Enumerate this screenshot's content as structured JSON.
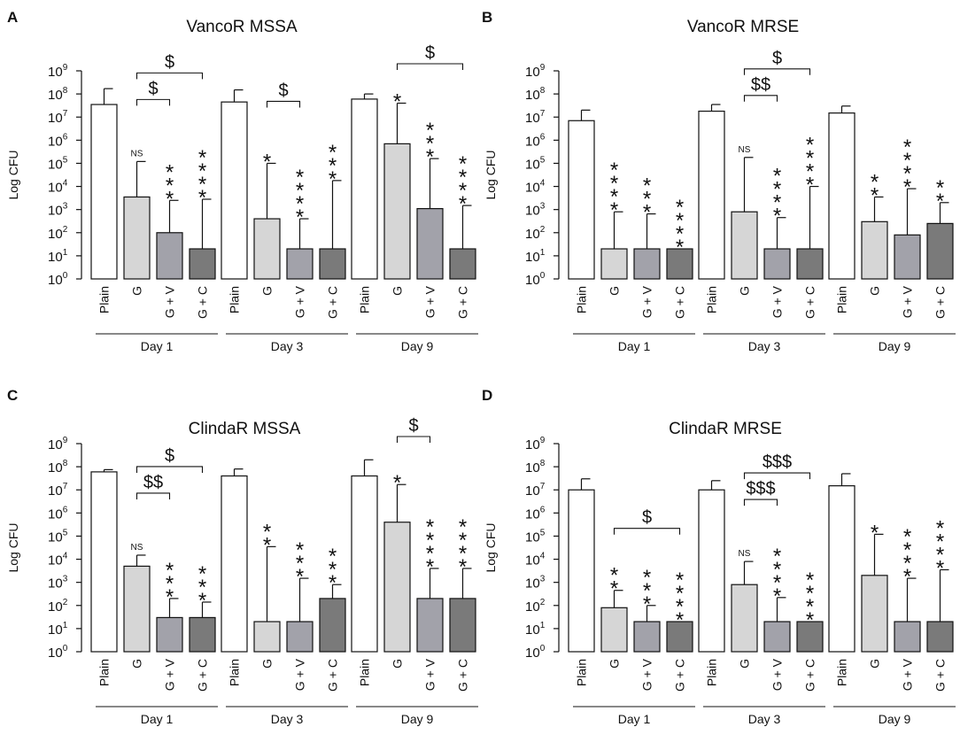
{
  "figure": {
    "colors": {
      "Plain": "#ffffff",
      "G": "#d6d6d6",
      "G + V": "#a2a2aa",
      "G + C": "#7a7a7a",
      "stroke": "#111111"
    },
    "y_axis_label": "Log CFU",
    "y_ticks": [
      {
        "base": "10",
        "exp": "0"
      },
      {
        "base": "10",
        "exp": "1"
      },
      {
        "base": "10",
        "exp": "2"
      },
      {
        "base": "10",
        "exp": "3"
      },
      {
        "base": "10",
        "exp": "4"
      },
      {
        "base": "10",
        "exp": "5"
      },
      {
        "base": "10",
        "exp": "6"
      },
      {
        "base": "10",
        "exp": "7"
      },
      {
        "base": "10",
        "exp": "8"
      },
      {
        "base": "10",
        "exp": "9"
      }
    ],
    "categories": [
      "Plain",
      "G",
      "G + V",
      "G + C"
    ],
    "days": [
      "Day 1",
      "Day 3",
      "Day 9"
    ]
  },
  "chart_data": [
    {
      "type": "bar",
      "letter": "A",
      "title": "VancoR MSSA",
      "ylabel": "Log CFU",
      "yscale": "log",
      "ylim_log10": [
        0,
        9
      ],
      "categories": [
        "Plain",
        "G",
        "G + V",
        "G + C"
      ],
      "groups": [
        {
          "name": "Day 1",
          "values": [
            35000000,
            3500,
            100,
            20
          ],
          "error_upper": [
            170000000,
            120000,
            2500,
            2800
          ],
          "sig": [
            "",
            "NS",
            "***",
            "****"
          ]
        },
        {
          "name": "Day 3",
          "values": [
            45000000,
            400,
            20,
            20
          ],
          "error_upper": [
            150000000,
            100000,
            400,
            18000
          ],
          "sig": [
            "",
            "*",
            "****",
            "***"
          ]
        },
        {
          "name": "Day 9",
          "values": [
            60000000,
            700000,
            1100,
            20
          ],
          "error_upper": [
            100000000,
            40000000,
            160000,
            1500
          ],
          "sig": [
            "",
            "*",
            "***",
            "****"
          ]
        }
      ],
      "brackets": [
        {
          "group": 0,
          "from": "G",
          "to": "G + V",
          "label": "$"
        },
        {
          "group": 0,
          "from": "G",
          "to": "G + C",
          "label": "$"
        },
        {
          "group": 1,
          "from": "G",
          "to": "G + V",
          "label": "$"
        },
        {
          "group": 2,
          "from": "G",
          "to": "G + C",
          "label": "$"
        }
      ]
    },
    {
      "type": "bar",
      "letter": "B",
      "title": "VancoR MRSE",
      "ylabel": "Log CFU",
      "yscale": "log",
      "ylim_log10": [
        0,
        9
      ],
      "categories": [
        "Plain",
        "G",
        "G + V",
        "G + C"
      ],
      "groups": [
        {
          "name": "Day 1",
          "values": [
            7000000,
            20,
            20,
            20
          ],
          "error_upper": [
            20000000,
            800,
            650,
            20
          ],
          "sig": [
            "",
            "****",
            "***",
            "****"
          ]
        },
        {
          "name": "Day 3",
          "values": [
            18000000,
            800,
            20,
            20
          ],
          "error_upper": [
            35000000,
            180000,
            450,
            10000
          ],
          "sig": [
            "",
            "NS",
            "****",
            "****"
          ]
        },
        {
          "name": "Day 9",
          "values": [
            15000000,
            300,
            80,
            250
          ],
          "error_upper": [
            30000000,
            3500,
            8000,
            2000
          ],
          "sig": [
            "",
            "**",
            "****",
            "**"
          ]
        }
      ],
      "brackets": [
        {
          "group": 1,
          "from": "G",
          "to": "G + V",
          "label": "$$"
        },
        {
          "group": 1,
          "from": "G",
          "to": "G + C",
          "label": "$"
        }
      ]
    },
    {
      "type": "bar",
      "letter": "C",
      "title": "ClindaR MSSA",
      "ylabel": "Log CFU",
      "yscale": "log",
      "ylim_log10": [
        0,
        9
      ],
      "categories": [
        "Plain",
        "G",
        "G + V",
        "G + C"
      ],
      "groups": [
        {
          "name": "Day 1",
          "values": [
            60000000,
            5000,
            30,
            30
          ],
          "error_upper": [
            75000000,
            15000,
            200,
            140
          ],
          "sig": [
            "",
            "NS",
            "***",
            "***"
          ]
        },
        {
          "name": "Day 3",
          "values": [
            40000000,
            20,
            20,
            200
          ],
          "error_upper": [
            80000000,
            35000,
            1500,
            800
          ],
          "sig": [
            "",
            "**",
            "***",
            "***"
          ]
        },
        {
          "name": "Day 9",
          "values": [
            40000000,
            400000,
            200,
            200
          ],
          "error_upper": [
            200000000,
            17000000,
            4000,
            4000
          ],
          "sig": [
            "",
            "*",
            "****",
            "****"
          ]
        }
      ],
      "brackets": [
        {
          "group": 0,
          "from": "G",
          "to": "G + V",
          "label": "$$"
        },
        {
          "group": 0,
          "from": "G",
          "to": "G + C",
          "label": "$"
        },
        {
          "group": 2,
          "from": "G",
          "to": "G + V",
          "label": "$"
        }
      ]
    },
    {
      "type": "bar",
      "letter": "D",
      "title": "ClindaR MRSE",
      "ylabel": "Log CFU",
      "yscale": "log",
      "ylim_log10": [
        0,
        9
      ],
      "categories": [
        "Plain",
        "G",
        "G + V",
        "G + C"
      ],
      "groups": [
        {
          "name": "Day 1",
          "values": [
            10000000,
            80,
            20,
            20
          ],
          "error_upper": [
            30000000,
            450,
            100,
            20
          ],
          "sig": [
            "",
            "**",
            "***",
            "****"
          ]
        },
        {
          "name": "Day 3",
          "values": [
            10000000,
            800,
            20,
            20
          ],
          "error_upper": [
            25000000,
            8000,
            220,
            20
          ],
          "sig": [
            "",
            "NS",
            "****",
            "****"
          ]
        },
        {
          "name": "Day 9",
          "values": [
            15000000,
            2000,
            20,
            20
          ],
          "error_upper": [
            50000000,
            120000,
            1500,
            3500
          ],
          "sig": [
            "",
            "*",
            "****",
            "****"
          ]
        }
      ],
      "brackets": [
        {
          "group": 0,
          "from": "G",
          "to": "G + C",
          "label": "$"
        },
        {
          "group": 1,
          "from": "G",
          "to": "G + V",
          "label": "$$$"
        },
        {
          "group": 1,
          "from": "G",
          "to": "G + C",
          "label": "$$$"
        }
      ]
    }
  ]
}
